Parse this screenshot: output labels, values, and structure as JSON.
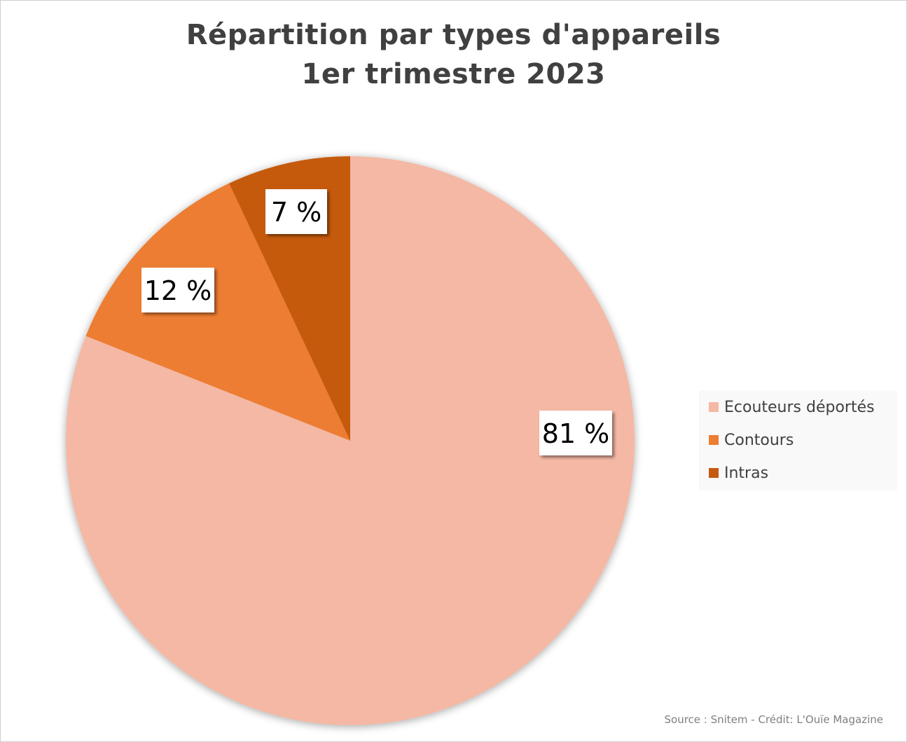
{
  "title_lines": [
    "Répartition par types d'appareils",
    "1er trimestre 2023"
  ],
  "source": "Source : Snitem - Crédit: L'Ouïe Magazine",
  "chart_data": {
    "type": "pie",
    "title": "Répartition par types d'appareils 1er trimestre 2023",
    "slices": [
      {
        "name": "Ecouteurs déportés",
        "value": 81,
        "label": "81 %",
        "color": "#f4b8a4"
      },
      {
        "name": "Contours",
        "value": 12,
        "label": "12 %",
        "color": "#ed7d31"
      },
      {
        "name": "Intras",
        "value": 7,
        "label": "7 %",
        "color": "#c55a11"
      }
    ],
    "start_angle": "12 o'clock, clockwise",
    "legend": "right"
  }
}
